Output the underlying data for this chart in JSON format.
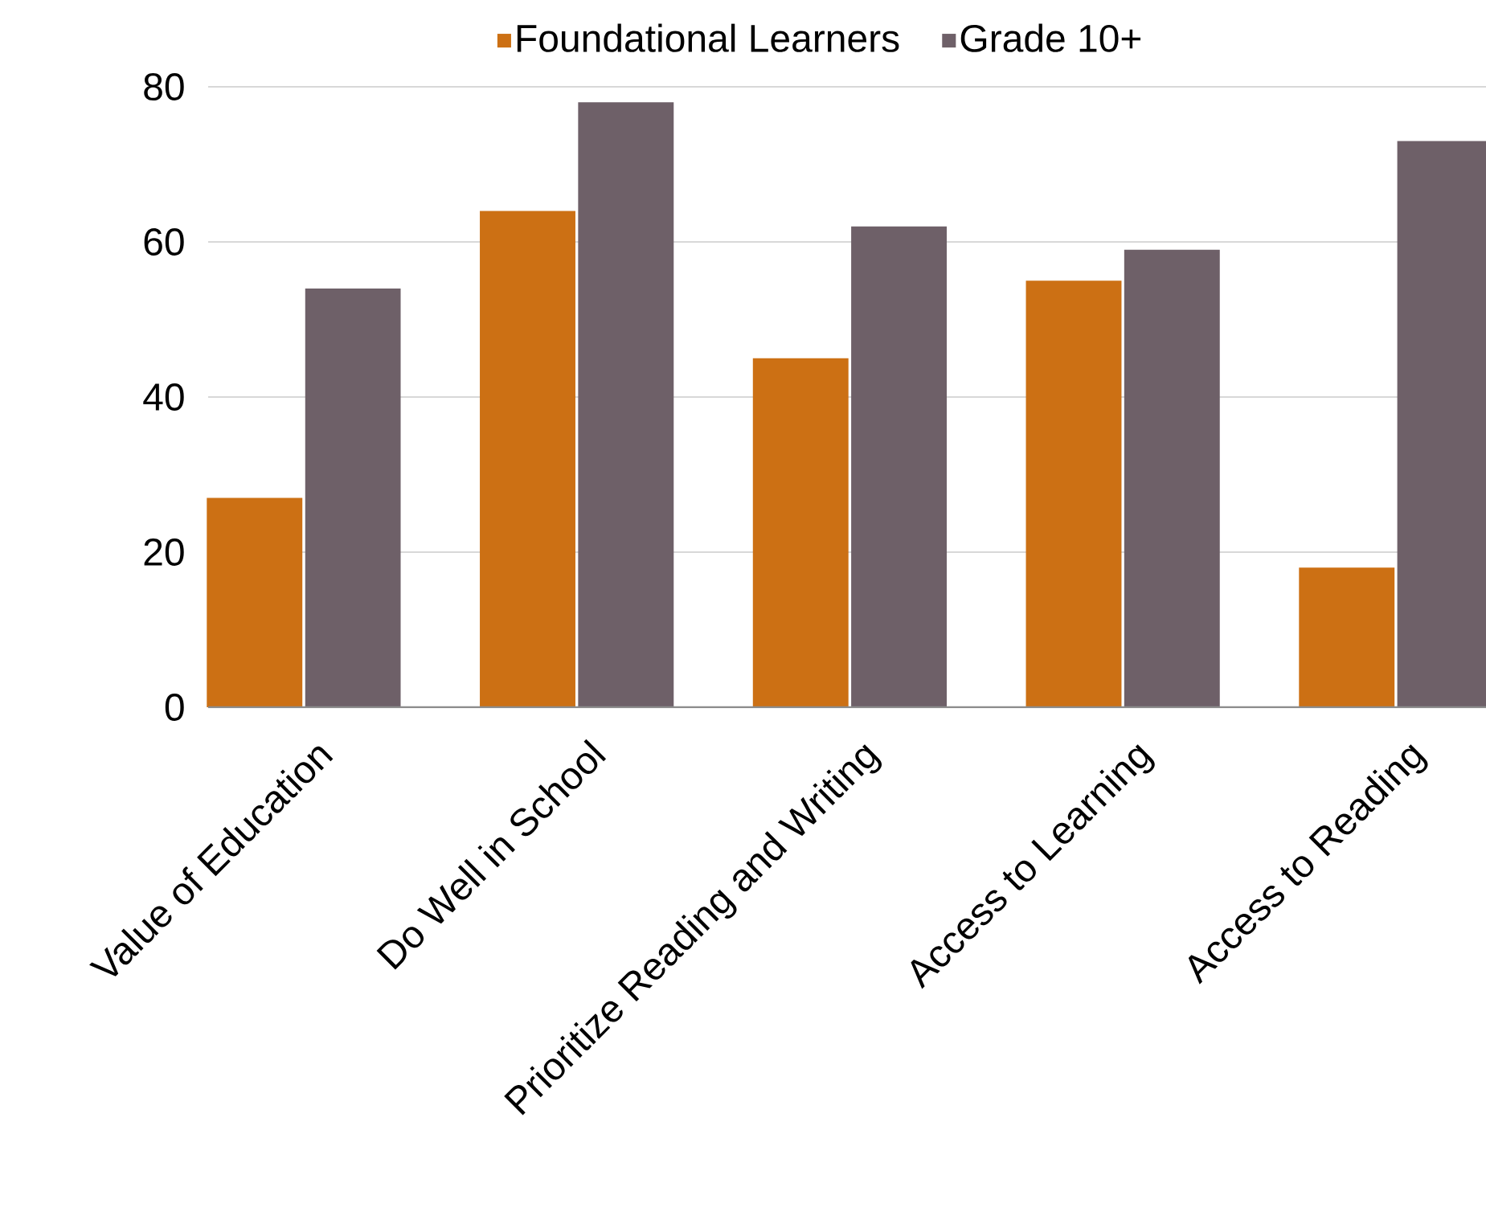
{
  "chart_data": {
    "type": "bar",
    "categories": [
      "Value of Education",
      "Do Well in School",
      "Prioritize Reading and Writing",
      "Access to Learning",
      "Access to Reading"
    ],
    "series": [
      {
        "name": "Foundational Learners",
        "color": "#cc7014",
        "values": [
          27,
          64,
          45,
          55,
          18
        ]
      },
      {
        "name": "Grade 10+",
        "color": "#6e6068",
        "values": [
          54,
          78,
          62,
          59,
          73
        ]
      }
    ],
    "ylim": [
      0,
      80
    ],
    "yticks": [
      0,
      20,
      40,
      60,
      80
    ],
    "grid": "y",
    "legend": "top"
  }
}
